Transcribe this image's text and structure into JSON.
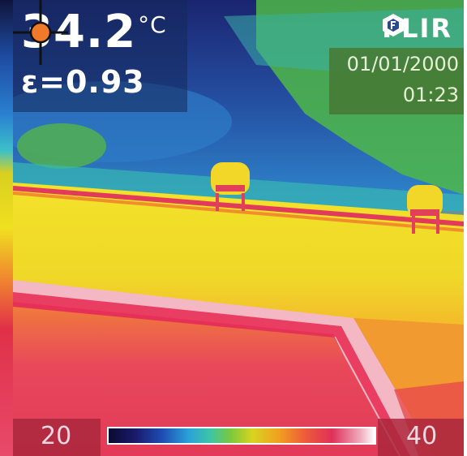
{
  "readout": {
    "temperature": "34.2",
    "unit": "°C",
    "emissivity": "ε=0.93"
  },
  "logo": {
    "text": "FLIR",
    "icon": "flir-logo-icon"
  },
  "datetime": {
    "date": "01/01/2000",
    "time": "01:23"
  },
  "scale": {
    "min": "20",
    "max": "40"
  },
  "colors": {
    "sky_dark": "#1b2a78",
    "sky_mid": "#2f8ad0",
    "sky_green": "#57c040",
    "roof_yellow": "#f0e22a",
    "roof_orange": "#f09a30",
    "roof_red": "#e03a55",
    "overlay_green": "#467832",
    "overlay_red": "#aa283c"
  }
}
